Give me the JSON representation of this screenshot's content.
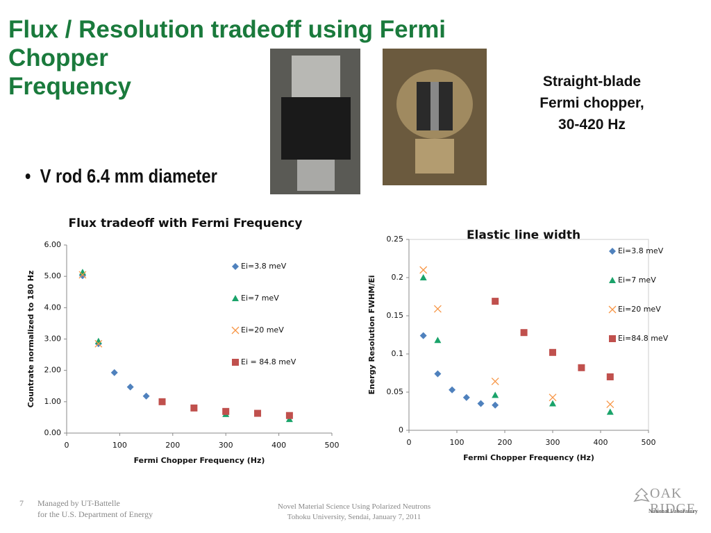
{
  "header": {
    "title_lines": [
      "Flux / Resolution tradeoff using Fermi",
      "Chopper",
      "Frequency"
    ]
  },
  "caption": {
    "lines": [
      "Straight-blade",
      "Fermi chopper,",
      "30-420 Hz"
    ]
  },
  "bullets": [
    "V rod 6.4 mm diameter"
  ],
  "footer": {
    "page_number": "7",
    "left_lines": [
      "Managed by UT-Battelle",
      "for the U.S. Department of Energy"
    ],
    "center_lines": [
      "Novel Material Science Using Polarized Neutrons",
      "Tohoku University, Sendai, January 7, 2011"
    ],
    "logo_lines": [
      "OAK",
      "RIDGE",
      "National Laboratory"
    ]
  },
  "chart_data": [
    {
      "type": "scatter",
      "title": "Flux tradeoff with Fermi Frequency",
      "x_label": "Fermi Chopper Frequency (Hz)",
      "y_label": "Countrate normalized to 180 Hz",
      "xlim": [
        0,
        500
      ],
      "xticks": [
        0,
        100,
        200,
        300,
        400,
        500
      ],
      "ylim": [
        0,
        6
      ],
      "yticks": [
        {
          "value": 0,
          "label": "0.00"
        },
        {
          "value": 1,
          "label": "1.00"
        },
        {
          "value": 2,
          "label": "2.00"
        },
        {
          "value": 3,
          "label": "3.00"
        },
        {
          "value": 4,
          "label": "4.00"
        },
        {
          "value": 5,
          "label": "5.00"
        },
        {
          "value": 6,
          "label": "6.00"
        }
      ],
      "frame": false,
      "series": [
        {
          "name": "Ei=3.8 meV",
          "color": "#4f81bd",
          "marker": "diamond",
          "x": [
            30,
            60,
            90,
            120,
            150
          ],
          "values": [
            5.02,
            2.85,
            1.93,
            1.47,
            1.18
          ]
        },
        {
          "name": "Ei=7 meV",
          "color": "#1aa36a",
          "marker": "triangle",
          "x": [
            30,
            60,
            300,
            420
          ],
          "values": [
            5.13,
            2.93,
            0.6,
            0.44
          ]
        },
        {
          "name": "Ei=20 meV",
          "color": "#f79646",
          "marker": "cross",
          "x": [
            30,
            60
          ],
          "values": [
            5.05,
            2.85
          ]
        },
        {
          "name": "Ei = 84.8 meV",
          "color": "#c0504d",
          "marker": "square",
          "x": [
            180,
            240,
            300,
            360,
            420
          ],
          "values": [
            1.0,
            0.8,
            0.69,
            0.63,
            0.56
          ]
        }
      ]
    },
    {
      "type": "scatter",
      "title": "Elastic line width",
      "x_label": "Fermi Chopper Frequency (Hz)",
      "y_label": "Energy Resolution FWHM/Ei",
      "xlim": [
        0,
        500
      ],
      "xticks": [
        0,
        100,
        200,
        300,
        400,
        500
      ],
      "ylim": [
        0,
        0.25
      ],
      "yticks": [
        0,
        0.05,
        0.1,
        0.15,
        0.2,
        0.25
      ],
      "frame": true,
      "series": [
        {
          "name": "Ei=3.8 meV",
          "color": "#4f81bd",
          "marker": "diamond",
          "x": [
            30,
            60,
            90,
            120,
            150,
            180
          ],
          "values": [
            0.124,
            0.074,
            0.053,
            0.043,
            0.035,
            0.033
          ]
        },
        {
          "name": "Ei=7 meV",
          "color": "#1aa36a",
          "marker": "triangle",
          "x": [
            30,
            60,
            180,
            300,
            420
          ],
          "values": [
            0.2,
            0.118,
            0.046,
            0.035,
            0.024
          ]
        },
        {
          "name": "Ei=20 meV",
          "color": "#f79646",
          "marker": "cross",
          "x": [
            30,
            60,
            180,
            300,
            420
          ],
          "values": [
            0.21,
            0.159,
            0.064,
            0.043,
            0.034
          ]
        },
        {
          "name": "Ei=84.8 meV",
          "color": "#c0504d",
          "marker": "square",
          "x": [
            180,
            240,
            300,
            360,
            420
          ],
          "values": [
            0.169,
            0.128,
            0.102,
            0.082,
            0.07
          ]
        }
      ]
    }
  ]
}
